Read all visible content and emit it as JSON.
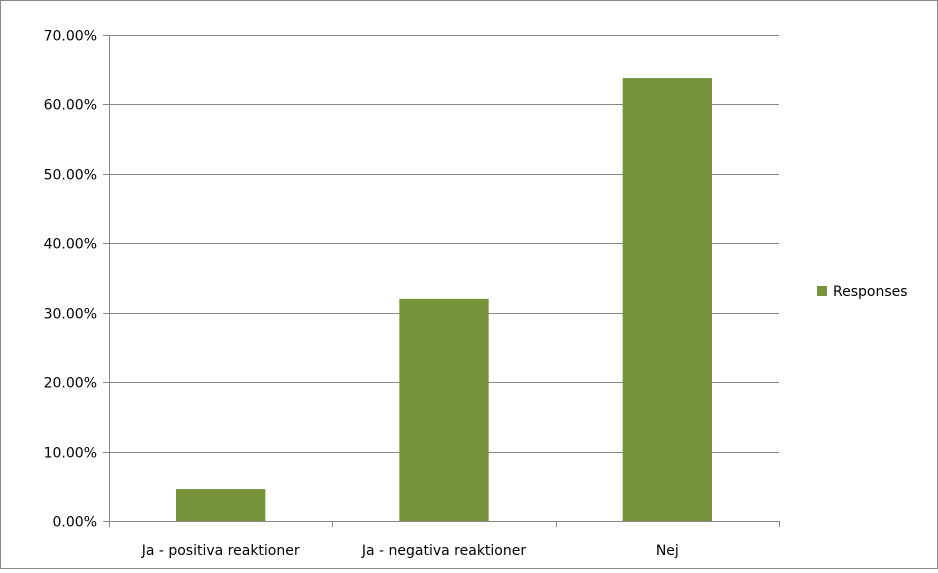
{
  "chart_data": {
    "type": "bar",
    "title": "",
    "xlabel": "",
    "ylabel": "",
    "categories": [
      "Ja - positiva reaktioner",
      "Ja - negativa reaktioner",
      "Nej"
    ],
    "series": [
      {
        "name": "Responses",
        "values": [
          4.6,
          32.0,
          63.8
        ],
        "color": "#77933c"
      }
    ],
    "ylim": [
      0,
      70
    ],
    "yticks": [
      0,
      10,
      20,
      30,
      40,
      50,
      60,
      70
    ],
    "ytick_labels": [
      "0.00%",
      "10.00%",
      "20.00%",
      "30.00%",
      "40.00%",
      "50.00%",
      "60.00%",
      "70.00%"
    ],
    "grid": true,
    "legend": "right"
  }
}
